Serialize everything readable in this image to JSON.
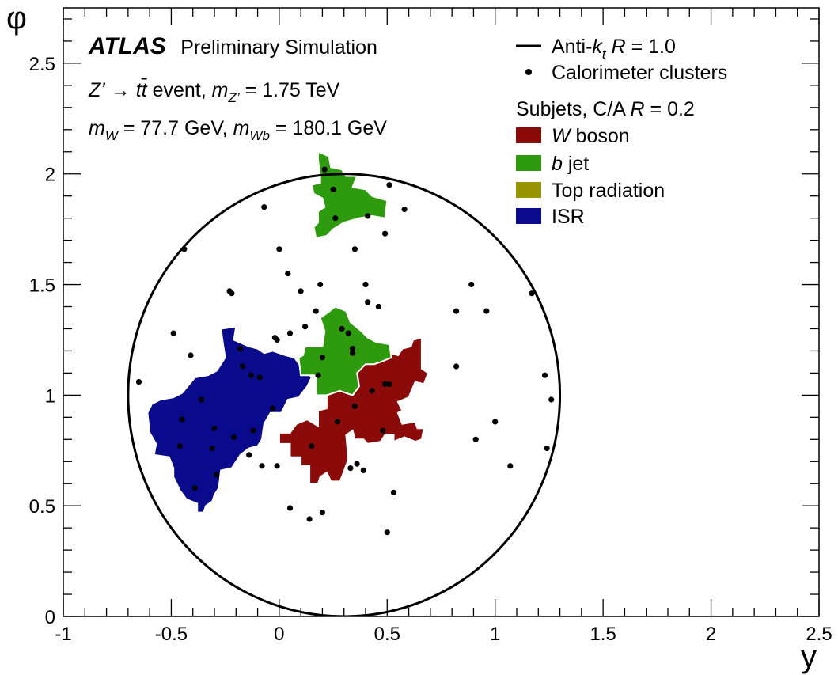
{
  "chart_data": {
    "type": "scatter",
    "xlabel": "y",
    "ylabel": "φ",
    "xlim": [
      -1,
      2.5
    ],
    "ylim": [
      0,
      2.75
    ],
    "x_ticks": [
      "-1",
      "-0.5",
      "0",
      "0.5",
      "1",
      "1.5",
      "2",
      "2.5"
    ],
    "x_tick_values": [
      -1,
      -0.5,
      0,
      0.5,
      1,
      1.5,
      2,
      2.5
    ],
    "y_ticks": [
      "0",
      "0.5",
      "1",
      "1.5",
      "2",
      "2.5"
    ],
    "y_tick_values": [
      0,
      0.5,
      1,
      1.5,
      2,
      2.5
    ],
    "grid": false,
    "legend_placement": "top-right",
    "annotations": {
      "atlas": "ATLAS",
      "atlas_sub": "Preliminary Simulation",
      "line2": {
        "z": "Z’",
        "arrow": " → ",
        "t": "t",
        "tbar": "t",
        "rest": " event, ",
        "m": "m",
        "m_sub": "Z’",
        "val": " = 1.75 TeV"
      },
      "line3": {
        "m1": "m",
        "m1_sub": "W",
        "v1": " = 77.7 GeV, ",
        "m2": "m",
        "m2_sub": "Wb",
        "v2": " = 180.1 GeV"
      }
    },
    "legend": {
      "antikt": {
        "pre": "Anti-",
        "k": "k",
        "k_sub": "t",
        "r": " R",
        "val": " = 1.0"
      },
      "clusters": "Calorimeter clusters",
      "subjets_head": {
        "pre": "Subjets, C/A ",
        "r": "R",
        "val": " = 0.2"
      },
      "w": {
        "it": "W",
        "rest": " boson"
      },
      "b": {
        "it": "b",
        "rest": " jet"
      },
      "top": "Top radiation",
      "isr": "ISR"
    },
    "colors": {
      "w_boson": "#8b0a0a",
      "b_jet": "#2e9a0e",
      "top_radiation": "#989400",
      "isr": "#0a0a8c"
    },
    "jet": {
      "center": [
        0.3,
        1.0
      ],
      "radius": 1.0
    },
    "clusters": [
      [
        -0.65,
        1.06
      ],
      [
        -0.49,
        1.28
      ],
      [
        -0.44,
        1.66
      ],
      [
        -0.41,
        1.18
      ],
      [
        -0.45,
        0.89
      ],
      [
        -0.46,
        0.77
      ],
      [
        -0.39,
        0.58
      ],
      [
        -0.36,
        0.98
      ],
      [
        -0.3,
        0.85
      ],
      [
        -0.31,
        0.76
      ],
      [
        -0.29,
        0.64
      ],
      [
        -0.23,
        1.47
      ],
      [
        -0.22,
        1.46
      ],
      [
        -0.21,
        0.81
      ],
      [
        -0.18,
        1.21
      ],
      [
        -0.17,
        1.13
      ],
      [
        -0.14,
        0.73
      ],
      [
        -0.13,
        1.09
      ],
      [
        -0.12,
        0.84
      ],
      [
        -0.09,
        1.08
      ],
      [
        -0.08,
        0.68
      ],
      [
        -0.07,
        1.85
      ],
      [
        -0.03,
        0.94
      ],
      [
        -0.02,
        1.26
      ],
      [
        -0.01,
        0.68
      ],
      [
        -0.01,
        1.25
      ],
      [
        0.0,
        1.66
      ],
      [
        0.04,
        1.55
      ],
      [
        0.05,
        0.49
      ],
      [
        0.05,
        1.28
      ],
      [
        0.1,
        1.47
      ],
      [
        0.12,
        1.31
      ],
      [
        0.14,
        0.44
      ],
      [
        0.15,
        0.77
      ],
      [
        0.17,
        1.38
      ],
      [
        0.18,
        1.09
      ],
      [
        0.19,
        1.5
      ],
      [
        0.2,
        0.47
      ],
      [
        0.2,
        1.17
      ],
      [
        0.21,
        2.02
      ],
      [
        0.25,
        1.93
      ],
      [
        0.26,
        1.8
      ],
      [
        0.27,
        0.88
      ],
      [
        0.29,
        1.3
      ],
      [
        0.32,
        1.28
      ],
      [
        0.33,
        0.67
      ],
      [
        0.34,
        1.21
      ],
      [
        0.34,
        1.19
      ],
      [
        0.35,
        0.95
      ],
      [
        0.35,
        1.66
      ],
      [
        0.36,
        0.69
      ],
      [
        0.39,
        0.66
      ],
      [
        0.41,
        1.81
      ],
      [
        0.4,
        1.5
      ],
      [
        0.41,
        1.42
      ],
      [
        0.43,
        1.02
      ],
      [
        0.46,
        1.4
      ],
      [
        0.48,
        0.84
      ],
      [
        0.49,
        1.73
      ],
      [
        0.49,
        1.05
      ],
      [
        0.5,
        0.38
      ],
      [
        0.51,
        1.95
      ],
      [
        0.51,
        1.05
      ],
      [
        0.53,
        0.56
      ],
      [
        0.58,
        1.84
      ],
      [
        0.82,
        1.38
      ],
      [
        0.82,
        1.13
      ],
      [
        0.89,
        1.5
      ],
      [
        0.91,
        0.8
      ],
      [
        0.96,
        1.38
      ],
      [
        1.0,
        0.88
      ],
      [
        1.07,
        0.68
      ],
      [
        1.17,
        1.46
      ],
      [
        1.23,
        1.09
      ],
      [
        1.24,
        0.76
      ],
      [
        1.26,
        0.98
      ]
    ],
    "regions": {
      "w_boson": [
        [
          0.14,
          0.6
        ],
        [
          0.14,
          0.68
        ],
        [
          0.1,
          0.68
        ],
        [
          0.1,
          0.72
        ],
        [
          0.05,
          0.72
        ],
        [
          0.05,
          0.78
        ],
        [
          0.0,
          0.78
        ],
        [
          0.0,
          0.83
        ],
        [
          0.05,
          0.83
        ],
        [
          0.08,
          0.87
        ],
        [
          0.13,
          0.89
        ],
        [
          0.18,
          0.86
        ],
        [
          0.18,
          0.93
        ],
        [
          0.22,
          0.94
        ],
        [
          0.22,
          1.0
        ],
        [
          0.28,
          1.02
        ],
        [
          0.34,
          1.0
        ],
        [
          0.37,
          1.04
        ],
        [
          0.36,
          1.11
        ],
        [
          0.4,
          1.14
        ],
        [
          0.42,
          1.17
        ],
        [
          0.47,
          1.17
        ],
        [
          0.52,
          1.19
        ],
        [
          0.55,
          1.18
        ],
        [
          0.57,
          1.21
        ],
        [
          0.61,
          1.22
        ],
        [
          0.62,
          1.25
        ],
        [
          0.66,
          1.26
        ],
        [
          0.66,
          1.12
        ],
        [
          0.69,
          1.1
        ],
        [
          0.67,
          1.05
        ],
        [
          0.63,
          1.06
        ],
        [
          0.6,
          0.99
        ],
        [
          0.55,
          0.97
        ],
        [
          0.57,
          0.93
        ],
        [
          0.55,
          0.92
        ],
        [
          0.57,
          0.87
        ],
        [
          0.63,
          0.88
        ],
        [
          0.64,
          0.85
        ],
        [
          0.67,
          0.85
        ],
        [
          0.66,
          0.8
        ],
        [
          0.63,
          0.79
        ],
        [
          0.58,
          0.81
        ],
        [
          0.53,
          0.79
        ],
        [
          0.53,
          0.82
        ],
        [
          0.49,
          0.82
        ],
        [
          0.47,
          0.79
        ],
        [
          0.41,
          0.78
        ],
        [
          0.39,
          0.8
        ],
        [
          0.35,
          0.8
        ],
        [
          0.34,
          0.84
        ],
        [
          0.31,
          0.82
        ],
        [
          0.32,
          0.71
        ],
        [
          0.29,
          0.63
        ],
        [
          0.28,
          0.61
        ],
        [
          0.24,
          0.61
        ],
        [
          0.22,
          0.65
        ],
        [
          0.19,
          0.63
        ],
        [
          0.18,
          0.6
        ]
      ],
      "b_jet_lower": [
        [
          0.17,
          1.0
        ],
        [
          0.17,
          1.09
        ],
        [
          0.1,
          1.09
        ],
        [
          0.09,
          1.17
        ],
        [
          0.11,
          1.18
        ],
        [
          0.12,
          1.22
        ],
        [
          0.2,
          1.22
        ],
        [
          0.21,
          1.29
        ],
        [
          0.19,
          1.35
        ],
        [
          0.22,
          1.37
        ],
        [
          0.26,
          1.4
        ],
        [
          0.31,
          1.38
        ],
        [
          0.33,
          1.33
        ],
        [
          0.38,
          1.29
        ],
        [
          0.41,
          1.26
        ],
        [
          0.45,
          1.24
        ],
        [
          0.51,
          1.23
        ],
        [
          0.52,
          1.17
        ],
        [
          0.47,
          1.15
        ],
        [
          0.44,
          1.14
        ],
        [
          0.4,
          1.14
        ],
        [
          0.36,
          1.1
        ],
        [
          0.37,
          1.04
        ],
        [
          0.34,
          1.0
        ],
        [
          0.28,
          1.02
        ],
        [
          0.22,
          1.0
        ]
      ],
      "b_jet_upper": [
        [
          0.17,
          1.71
        ],
        [
          0.16,
          1.76
        ],
        [
          0.18,
          1.78
        ],
        [
          0.18,
          1.83
        ],
        [
          0.21,
          1.85
        ],
        [
          0.2,
          1.89
        ],
        [
          0.16,
          1.91
        ],
        [
          0.15,
          1.95
        ],
        [
          0.19,
          1.96
        ],
        [
          0.19,
          1.99
        ],
        [
          0.18,
          2.06
        ],
        [
          0.18,
          2.1
        ],
        [
          0.23,
          2.08
        ],
        [
          0.24,
          2.03
        ],
        [
          0.29,
          2.02
        ],
        [
          0.31,
          1.99
        ],
        [
          0.36,
          1.99
        ],
        [
          0.34,
          1.94
        ],
        [
          0.4,
          1.93
        ],
        [
          0.43,
          1.9
        ],
        [
          0.5,
          1.88
        ],
        [
          0.49,
          1.8
        ],
        [
          0.43,
          1.81
        ],
        [
          0.37,
          1.8
        ],
        [
          0.3,
          1.78
        ],
        [
          0.25,
          1.75
        ],
        [
          0.22,
          1.72
        ]
      ],
      "isr": [
        [
          -0.38,
          0.47
        ],
        [
          -0.38,
          0.51
        ],
        [
          -0.43,
          0.53
        ],
        [
          -0.46,
          0.57
        ],
        [
          -0.49,
          0.63
        ],
        [
          -0.49,
          0.67
        ],
        [
          -0.51,
          0.72
        ],
        [
          -0.58,
          0.73
        ],
        [
          -0.57,
          0.78
        ],
        [
          -0.6,
          0.83
        ],
        [
          -0.61,
          0.92
        ],
        [
          -0.59,
          0.96
        ],
        [
          -0.55,
          0.98
        ],
        [
          -0.49,
          0.99
        ],
        [
          -0.45,
          1.01
        ],
        [
          -0.39,
          1.08
        ],
        [
          -0.33,
          1.09
        ],
        [
          -0.29,
          1.11
        ],
        [
          -0.25,
          1.17
        ],
        [
          -0.26,
          1.23
        ],
        [
          -0.27,
          1.3
        ],
        [
          -0.2,
          1.31
        ],
        [
          -0.21,
          1.25
        ],
        [
          -0.14,
          1.22
        ],
        [
          -0.1,
          1.21
        ],
        [
          -0.07,
          1.19
        ],
        [
          -0.03,
          1.2
        ],
        [
          0.03,
          1.18
        ],
        [
          0.07,
          1.17
        ],
        [
          0.1,
          1.13
        ],
        [
          0.15,
          1.08
        ],
        [
          0.13,
          1.04
        ],
        [
          0.09,
          0.99
        ],
        [
          0.04,
          0.98
        ],
        [
          0.01,
          0.92
        ],
        [
          -0.04,
          0.92
        ],
        [
          -0.07,
          0.87
        ],
        [
          -0.08,
          0.8
        ],
        [
          -0.1,
          0.77
        ],
        [
          -0.14,
          0.76
        ],
        [
          -0.18,
          0.73
        ],
        [
          -0.2,
          0.7
        ],
        [
          -0.22,
          0.67
        ],
        [
          -0.27,
          0.66
        ],
        [
          -0.28,
          0.58
        ],
        [
          -0.3,
          0.55
        ],
        [
          -0.31,
          0.52
        ],
        [
          -0.34,
          0.5
        ],
        [
          -0.35,
          0.47
        ]
      ]
    }
  }
}
